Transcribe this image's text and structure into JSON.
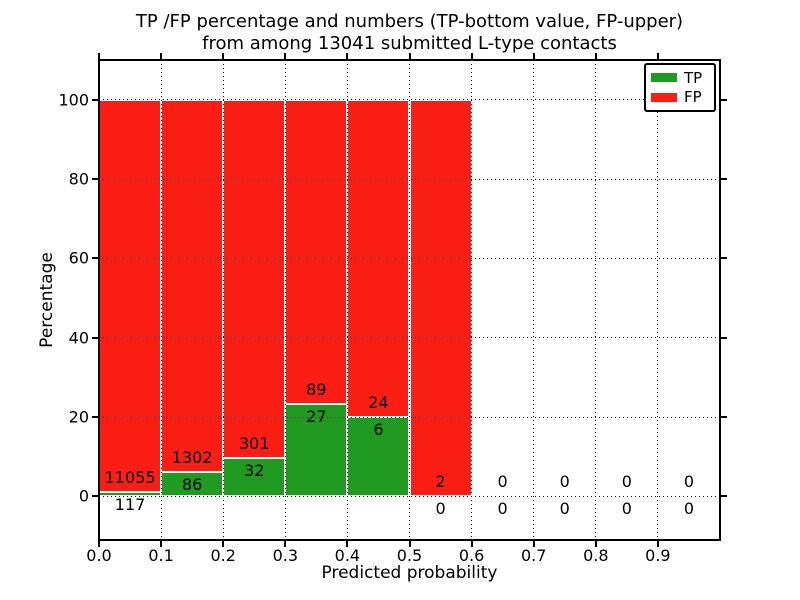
{
  "chart_data": {
    "type": "bar",
    "stacked": true,
    "title": "TP /FP percentage and numbers (TP-bottom value, FP-upper)\nfrom among 13041 submitted L-type contacts",
    "title_lines": [
      "TP /FP percentage and numbers (TP-bottom value, FP-upper)",
      "from among 13041 submitted L-type contacts"
    ],
    "total_submitted_contacts": 13041,
    "xlabel": "Predicted probability",
    "ylabel": "Percentage",
    "xlim": [
      0.0,
      1.0
    ],
    "ylim": [
      -11,
      110
    ],
    "grid": true,
    "colors": {
      "tp": "#219a21",
      "fp": "#fa1e14",
      "bar_edge": "#ffffff",
      "grid": "#111111"
    },
    "legend": {
      "position": "upper-right",
      "entries": [
        {
          "label": "TP",
          "color": "#219a21"
        },
        {
          "label": "FP",
          "color": "#fa1e14"
        }
      ]
    },
    "xticks": [
      {
        "value": 0.0,
        "label": "0.0"
      },
      {
        "value": 0.1,
        "label": "0.1"
      },
      {
        "value": 0.2,
        "label": "0.2"
      },
      {
        "value": 0.3,
        "label": "0.3"
      },
      {
        "value": 0.4,
        "label": "0.4"
      },
      {
        "value": 0.5,
        "label": "0.5"
      },
      {
        "value": 0.6,
        "label": "0.6"
      },
      {
        "value": 0.7,
        "label": "0.7"
      },
      {
        "value": 0.8,
        "label": "0.8"
      },
      {
        "value": 0.9,
        "label": "0.9"
      }
    ],
    "yticks": [
      {
        "value": 0,
        "label": "0"
      },
      {
        "value": 20,
        "label": "20"
      },
      {
        "value": 40,
        "label": "40"
      },
      {
        "value": 60,
        "label": "60"
      },
      {
        "value": 80,
        "label": "80"
      },
      {
        "value": 100,
        "label": "100"
      }
    ],
    "bins": [
      {
        "x_range": [
          0.0,
          0.1
        ],
        "tp": 117,
        "fp": 11055
      },
      {
        "x_range": [
          0.1,
          0.2
        ],
        "tp": 86,
        "fp": 1302
      },
      {
        "x_range": [
          0.2,
          0.3
        ],
        "tp": 32,
        "fp": 301
      },
      {
        "x_range": [
          0.3,
          0.4
        ],
        "tp": 27,
        "fp": 89
      },
      {
        "x_range": [
          0.4,
          0.5
        ],
        "tp": 6,
        "fp": 24
      },
      {
        "x_range": [
          0.5,
          0.6
        ],
        "tp": 0,
        "fp": 2
      },
      {
        "x_range": [
          0.6,
          0.7
        ],
        "tp": 0,
        "fp": 0
      },
      {
        "x_range": [
          0.7,
          0.8
        ],
        "tp": 0,
        "fp": 0
      },
      {
        "x_range": [
          0.8,
          0.9
        ],
        "tp": 0,
        "fp": 0
      },
      {
        "x_range": [
          0.9,
          1.0
        ],
        "tp": 0,
        "fp": 0
      }
    ]
  }
}
